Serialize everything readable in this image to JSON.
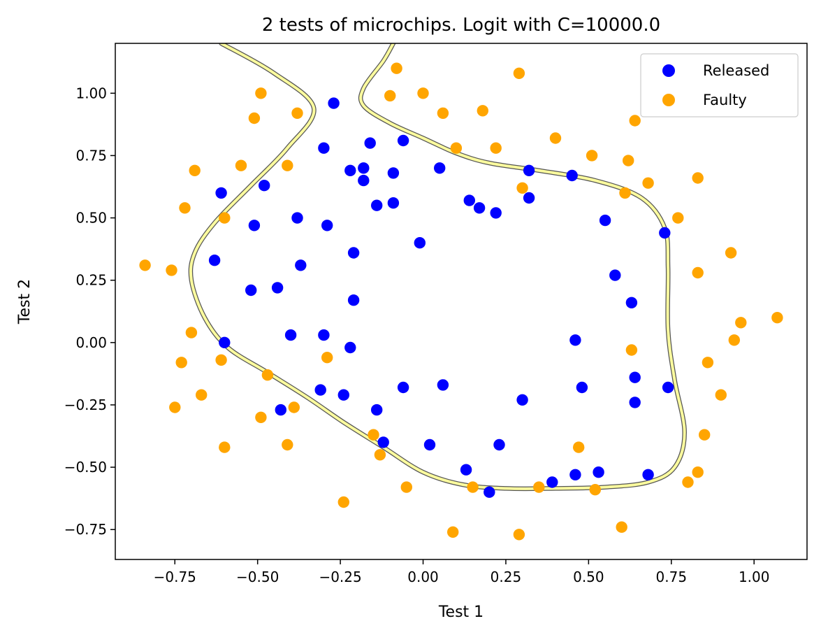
{
  "chart_data": {
    "type": "scatter",
    "title": "2 tests of microchips. Logit with C=10000.0",
    "xlabel": "Test 1",
    "ylabel": "Test 2",
    "xlim": [
      -0.93,
      1.16
    ],
    "ylim": [
      -0.87,
      1.2
    ],
    "xticks": [
      -0.75,
      -0.5,
      -0.25,
      0.0,
      0.25,
      0.5,
      0.75,
      1.0
    ],
    "xtick_labels": [
      "−0.75",
      "−0.50",
      "−0.25",
      "0.00",
      "0.25",
      "0.50",
      "0.75",
      "1.00"
    ],
    "yticks": [
      -0.75,
      -0.5,
      -0.25,
      0.0,
      0.25,
      0.5,
      0.75,
      1.0
    ],
    "ytick_labels": [
      "−0.75",
      "−0.50",
      "−0.25",
      "0.00",
      "0.25",
      "0.50",
      "0.75",
      "1.00"
    ],
    "legend_position": "top-right",
    "grid": false,
    "series": [
      {
        "name": "Released",
        "color": "#0000ff",
        "points": [
          [
            -0.27,
            0.96
          ],
          [
            -0.3,
            0.78
          ],
          [
            -0.06,
            0.81
          ],
          [
            -0.16,
            0.8
          ],
          [
            -0.61,
            0.6
          ],
          [
            -0.48,
            0.63
          ],
          [
            -0.22,
            0.69
          ],
          [
            -0.18,
            0.7
          ],
          [
            -0.18,
            0.65
          ],
          [
            -0.09,
            0.68
          ],
          [
            0.05,
            0.7
          ],
          [
            -0.14,
            0.55
          ],
          [
            -0.09,
            0.56
          ],
          [
            -0.38,
            0.5
          ],
          [
            -0.29,
            0.47
          ],
          [
            -0.51,
            0.47
          ],
          [
            0.14,
            0.57
          ],
          [
            0.17,
            0.54
          ],
          [
            0.22,
            0.52
          ],
          [
            0.32,
            0.69
          ],
          [
            0.32,
            0.58
          ],
          [
            0.45,
            0.67
          ],
          [
            0.55,
            0.49
          ],
          [
            0.73,
            0.44
          ],
          [
            -0.63,
            0.33
          ],
          [
            -0.37,
            0.31
          ],
          [
            -0.21,
            0.36
          ],
          [
            -0.01,
            0.4
          ],
          [
            -0.52,
            0.21
          ],
          [
            -0.44,
            0.22
          ],
          [
            -0.21,
            0.17
          ],
          [
            0.58,
            0.27
          ],
          [
            0.63,
            0.16
          ],
          [
            -0.6,
            0.0
          ],
          [
            -0.4,
            0.03
          ],
          [
            -0.3,
            0.03
          ],
          [
            -0.22,
            -0.02
          ],
          [
            0.46,
            0.01
          ],
          [
            -0.31,
            -0.19
          ],
          [
            -0.24,
            -0.21
          ],
          [
            -0.06,
            -0.18
          ],
          [
            0.06,
            -0.17
          ],
          [
            0.3,
            -0.23
          ],
          [
            0.48,
            -0.18
          ],
          [
            0.64,
            -0.14
          ],
          [
            0.74,
            -0.18
          ],
          [
            0.64,
            -0.24
          ],
          [
            -0.43,
            -0.27
          ],
          [
            -0.14,
            -0.27
          ],
          [
            -0.12,
            -0.4
          ],
          [
            0.02,
            -0.41
          ],
          [
            0.23,
            -0.41
          ],
          [
            0.13,
            -0.51
          ],
          [
            0.46,
            -0.53
          ],
          [
            0.53,
            -0.52
          ],
          [
            0.39,
            -0.56
          ],
          [
            0.2,
            -0.6
          ],
          [
            0.68,
            -0.53
          ]
        ]
      },
      {
        "name": "Faulty",
        "color": "#ffa500",
        "points": [
          [
            -0.08,
            1.1
          ],
          [
            0.29,
            1.08
          ],
          [
            -0.49,
            1.0
          ],
          [
            -0.1,
            0.99
          ],
          [
            0.0,
            1.0
          ],
          [
            -0.51,
            0.9
          ],
          [
            -0.38,
            0.92
          ],
          [
            0.06,
            0.92
          ],
          [
            0.18,
            0.93
          ],
          [
            0.64,
            0.89
          ],
          [
            0.1,
            0.78
          ],
          [
            0.22,
            0.78
          ],
          [
            0.4,
            0.82
          ],
          [
            0.51,
            0.75
          ],
          [
            0.62,
            0.73
          ],
          [
            -0.69,
            0.69
          ],
          [
            -0.55,
            0.71
          ],
          [
            -0.41,
            0.71
          ],
          [
            0.68,
            0.64
          ],
          [
            0.83,
            0.66
          ],
          [
            -0.72,
            0.54
          ],
          [
            -0.6,
            0.5
          ],
          [
            0.3,
            0.62
          ],
          [
            0.61,
            0.6
          ],
          [
            0.77,
            0.5
          ],
          [
            -0.84,
            0.31
          ],
          [
            -0.76,
            0.29
          ],
          [
            0.93,
            0.36
          ],
          [
            0.83,
            0.28
          ],
          [
            -0.7,
            0.04
          ],
          [
            -0.73,
            -0.08
          ],
          [
            -0.61,
            -0.07
          ],
          [
            -0.29,
            -0.06
          ],
          [
            0.63,
            -0.03
          ],
          [
            0.96,
            0.08
          ],
          [
            0.94,
            0.01
          ],
          [
            1.07,
            0.1
          ],
          [
            0.86,
            -0.08
          ],
          [
            -0.47,
            -0.13
          ],
          [
            -0.75,
            -0.26
          ],
          [
            -0.67,
            -0.21
          ],
          [
            -0.39,
            -0.26
          ],
          [
            -0.49,
            -0.3
          ],
          [
            0.9,
            -0.21
          ],
          [
            -0.6,
            -0.42
          ],
          [
            -0.41,
            -0.41
          ],
          [
            -0.15,
            -0.37
          ],
          [
            -0.13,
            -0.45
          ],
          [
            0.47,
            -0.42
          ],
          [
            0.85,
            -0.37
          ],
          [
            -0.24,
            -0.64
          ],
          [
            -0.05,
            -0.58
          ],
          [
            0.15,
            -0.58
          ],
          [
            0.35,
            -0.58
          ],
          [
            0.52,
            -0.59
          ],
          [
            0.8,
            -0.56
          ],
          [
            0.83,
            -0.52
          ],
          [
            0.09,
            -0.76
          ],
          [
            0.29,
            -0.77
          ],
          [
            0.6,
            -0.74
          ]
        ]
      }
    ]
  }
}
